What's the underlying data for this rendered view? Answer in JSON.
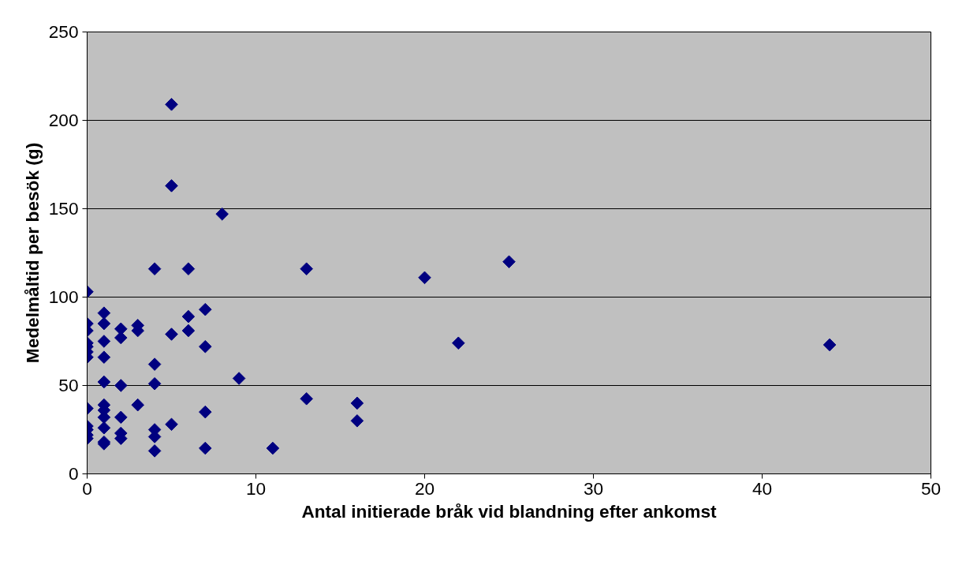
{
  "chart_data": {
    "type": "scatter",
    "xlabel": "Antal initierade bråk vid blandning efter ankomst",
    "ylabel": "Medelmåltid per besök (g)",
    "marker": "diamond",
    "grid": "y",
    "xlim": [
      0,
      50
    ],
    "xticks": [
      0,
      10,
      20,
      30,
      40,
      50
    ],
    "ylim": [
      0,
      250
    ],
    "yticks": [
      0,
      50,
      100,
      150,
      200,
      250
    ],
    "series": [
      {
        "color": "#000080",
        "x": [
          0,
          0,
          0,
          0,
          0,
          0,
          0,
          0,
          0,
          0,
          0,
          0,
          1,
          1,
          1,
          1,
          1,
          1,
          1,
          1,
          1,
          1,
          1,
          2,
          2,
          2,
          2,
          2,
          2,
          3,
          3,
          3,
          4,
          4,
          4,
          4,
          4,
          4,
          5,
          5,
          5,
          5,
          6,
          6,
          6,
          7,
          7,
          7,
          7,
          8,
          9,
          11,
          13,
          13,
          16,
          16,
          20,
          22,
          25,
          44
        ],
        "values": [
          103,
          85,
          81,
          74,
          72,
          69,
          66,
          37,
          27,
          25,
          22,
          20,
          91,
          85,
          75,
          66,
          52,
          39,
          36,
          32,
          26,
          18,
          17,
          82,
          77,
          50,
          32,
          23,
          20,
          84,
          81,
          39,
          116,
          62,
          51,
          25,
          21,
          13,
          209,
          163,
          79,
          28,
          116,
          89,
          81,
          93,
          72,
          35,
          14.5,
          147,
          54,
          14.5,
          116,
          42.5,
          40,
          30,
          111,
          74,
          120,
          73
        ]
      }
    ]
  }
}
